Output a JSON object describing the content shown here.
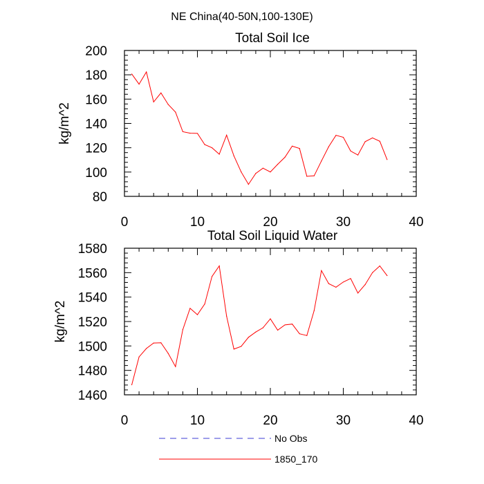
{
  "figure": {
    "suptitle": "NE China(40-50N,100-130E)"
  },
  "colors": {
    "model_line": "#ff0000",
    "obs_line": "#3b3bd6",
    "axis": "#000000",
    "background": "#ffffff"
  },
  "chart_data": [
    {
      "type": "line",
      "title": "Total Soil Ice",
      "xlabel": "",
      "ylabel": "kg/m^2",
      "xlim": [
        0,
        40
      ],
      "ylim": [
        80,
        200
      ],
      "xticks": [
        0,
        10,
        20,
        30,
        40
      ],
      "yticks": [
        80,
        100,
        120,
        140,
        160,
        180,
        200
      ],
      "grid": false,
      "series": [
        {
          "name": "1850_170",
          "color": "#ff0000",
          "x": [
            1,
            2,
            3,
            4,
            5,
            6,
            7,
            8,
            9,
            10,
            11,
            12,
            13,
            14,
            15,
            16,
            17,
            18,
            19,
            20,
            21,
            22,
            23,
            24,
            25,
            26,
            27,
            28,
            29,
            30,
            31,
            32,
            33,
            34,
            35,
            36
          ],
          "values": [
            180.6,
            172.3,
            182.3,
            157.7,
            165.1,
            155.6,
            149.3,
            133.2,
            132.0,
            131.8,
            122.6,
            120.0,
            114.7,
            130.4,
            113.3,
            100.1,
            89.9,
            98.9,
            103.2,
            100.1,
            106.4,
            112.2,
            121.3,
            119.4,
            96.5,
            96.9,
            109.1,
            120.9,
            130.2,
            128.6,
            117.3,
            114.0,
            125.0,
            128.1,
            125.3,
            110.3
          ]
        }
      ]
    },
    {
      "type": "line",
      "title": "Total Soil Liquid Water",
      "xlabel": "",
      "ylabel": "kg/m^2",
      "xlim": [
        0,
        40
      ],
      "ylim": [
        1460,
        1580
      ],
      "xticks": [
        0,
        10,
        20,
        30,
        40
      ],
      "yticks": [
        1460,
        1480,
        1500,
        1520,
        1540,
        1560,
        1580
      ],
      "grid": false,
      "series": [
        {
          "name": "1850_170",
          "color": "#ff0000",
          "x": [
            1,
            2,
            3,
            4,
            5,
            6,
            7,
            8,
            9,
            10,
            11,
            12,
            13,
            14,
            15,
            16,
            17,
            18,
            19,
            20,
            21,
            22,
            23,
            24,
            25,
            26,
            27,
            28,
            29,
            30,
            31,
            32,
            33,
            34,
            35,
            36
          ],
          "values": [
            1468.2,
            1491.0,
            1497.9,
            1502.4,
            1502.6,
            1493.9,
            1483.1,
            1513.4,
            1530.8,
            1525.6,
            1534.3,
            1556.9,
            1565.5,
            1524.4,
            1497.4,
            1499.6,
            1507.1,
            1511.4,
            1514.9,
            1522.2,
            1512.9,
            1517.2,
            1517.9,
            1510.0,
            1508.5,
            1528.9,
            1561.7,
            1551.0,
            1548.1,
            1552.3,
            1555.2,
            1543.3,
            1550.2,
            1560.0,
            1565.5,
            1557.6
          ]
        }
      ]
    }
  ],
  "legend": {
    "placement": "bottom-center",
    "entries": [
      {
        "label": "No Obs",
        "color": "#3b3bd6",
        "style": "dashed"
      },
      {
        "label": "1850_170",
        "color": "#ff0000",
        "style": "solid"
      }
    ]
  }
}
